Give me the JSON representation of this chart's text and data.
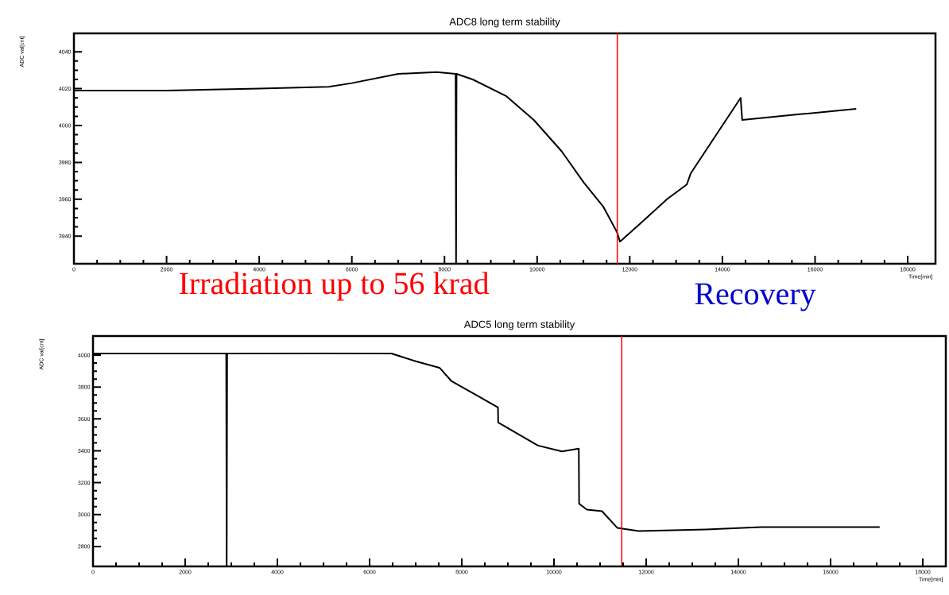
{
  "chart_data": [
    {
      "type": "line",
      "title": "ADC8 long term stability",
      "xlabel": "Time[min]",
      "ylabel": "ADC val[cnt]",
      "x": [
        0,
        2000,
        4000,
        5500,
        6000,
        7000,
        7830,
        8240,
        8250,
        8260,
        8609,
        9328,
        9928,
        10530,
        11008,
        11427,
        11726,
        11788,
        12325,
        12803,
        13231,
        13316,
        14393,
        14427,
        15624,
        16889
      ],
      "series": [
        {
          "color": "#000000",
          "values": [
            4019,
            4019,
            4020,
            4021,
            4023,
            4028,
            4029,
            4028,
            3925,
            4028,
            4025,
            4016,
            4003,
            3986,
            3969,
            3956,
            3942,
            3937,
            3949,
            3960,
            3968,
            3974,
            4015,
            4003,
            4006,
            4009
          ]
        }
      ],
      "xlim": [
        0,
        18600
      ],
      "xticks": [
        0,
        2000,
        4000,
        6000,
        8000,
        10000,
        12000,
        14000,
        16000,
        18000
      ],
      "ylim": [
        3925,
        4050
      ],
      "yticks": [
        3940,
        3960,
        3980,
        4000,
        4020,
        4040
      ],
      "ref_lines": [
        {
          "axis": "x",
          "value": 11730,
          "color": "#ff0000"
        }
      ],
      "annotations": [
        "Irradiation up to 56 krad",
        "Recovery"
      ]
    },
    {
      "type": "line",
      "title": "ADC5 long term stability",
      "xlabel": "Time[min]",
      "ylabel": "ADC val[cnt]",
      "x": [
        0,
        2000,
        2890,
        2900,
        2910,
        5000,
        6475,
        7000,
        7517,
        7780,
        8316,
        8785,
        8790,
        9184,
        9653,
        10174,
        10538,
        10545,
        10712,
        11042,
        11372,
        11840,
        13300,
        14500,
        17066
      ],
      "series": [
        {
          "color": "#000000",
          "values": [
            4010,
            4010,
            4010,
            2675,
            4010,
            4012,
            4010,
            3962,
            3921,
            3836,
            3749,
            3672,
            3577,
            3511,
            3433,
            3396,
            3414,
            3069,
            3031,
            3021,
            2917,
            2897,
            2907,
            2922,
            2922
          ]
        }
      ],
      "xlim": [
        0,
        18500
      ],
      "xticks": [
        0,
        2000,
        4000,
        6000,
        8000,
        10000,
        12000,
        14000,
        16000,
        18000
      ],
      "ylim": [
        2675,
        4120
      ],
      "yticks": [
        2800,
        3000,
        3200,
        3400,
        3600,
        3800,
        4000
      ],
      "ref_lines": [
        {
          "axis": "x",
          "value": 11470,
          "color": "#ff0000"
        }
      ]
    }
  ]
}
